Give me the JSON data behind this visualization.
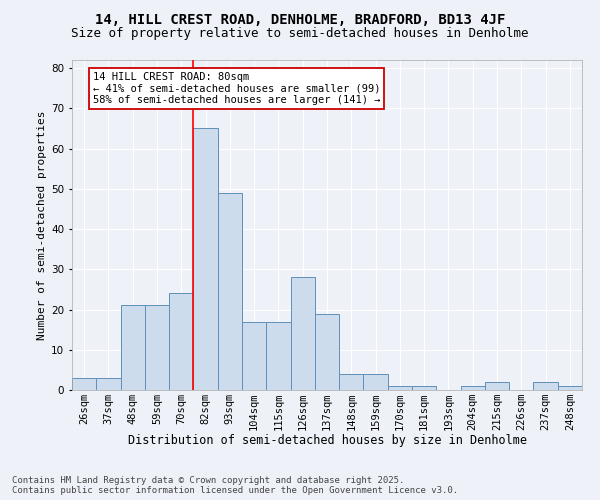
{
  "title1": "14, HILL CREST ROAD, DENHOLME, BRADFORD, BD13 4JF",
  "title2": "Size of property relative to semi-detached houses in Denholme",
  "xlabel": "Distribution of semi-detached houses by size in Denholme",
  "ylabel": "Number of semi-detached properties",
  "categories": [
    "26sqm",
    "37sqm",
    "48sqm",
    "59sqm",
    "70sqm",
    "82sqm",
    "93sqm",
    "104sqm",
    "115sqm",
    "126sqm",
    "137sqm",
    "148sqm",
    "159sqm",
    "170sqm",
    "181sqm",
    "193sqm",
    "204sqm",
    "215sqm",
    "226sqm",
    "237sqm",
    "248sqm"
  ],
  "values": [
    3,
    3,
    21,
    21,
    24,
    65,
    49,
    17,
    17,
    28,
    19,
    4,
    4,
    1,
    1,
    0,
    1,
    2,
    0,
    2,
    1
  ],
  "bar_color": "#ccdcec",
  "bar_edge_color": "#6090b8",
  "background_color": "#eef2f8",
  "grid_color": "#ffffff",
  "red_line_index": 5,
  "annotation_title": "14 HILL CREST ROAD: 80sqm",
  "annotation_line1": "← 41% of semi-detached houses are smaller (99)",
  "annotation_line2": "58% of semi-detached houses are larger (141) →",
  "annotation_box_facecolor": "#ffffff",
  "annotation_box_edgecolor": "#cc0000",
  "ylim": [
    0,
    82
  ],
  "yticks": [
    0,
    10,
    20,
    30,
    40,
    50,
    60,
    70,
    80
  ],
  "footnote1": "Contains HM Land Registry data © Crown copyright and database right 2025.",
  "footnote2": "Contains public sector information licensed under the Open Government Licence v3.0.",
  "title1_fontsize": 10,
  "title2_fontsize": 9,
  "xlabel_fontsize": 8.5,
  "ylabel_fontsize": 8,
  "tick_fontsize": 7.5,
  "annotation_fontsize": 7.5,
  "footnote_fontsize": 6.5
}
